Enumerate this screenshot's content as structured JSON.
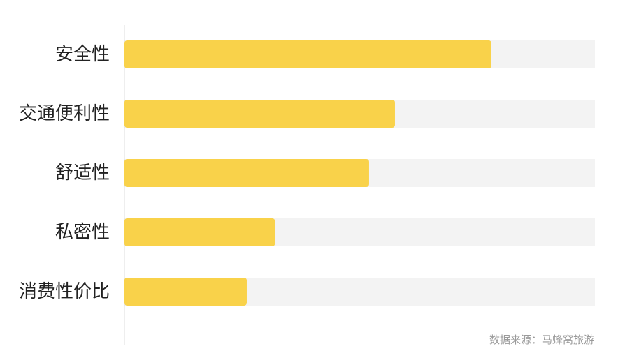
{
  "chart_data": {
    "type": "bar",
    "orientation": "horizontal",
    "categories": [
      "安全性",
      "交通便利性",
      "舒适性",
      "私密性",
      "消费性价比"
    ],
    "values": [
      78,
      57.5,
      52,
      32,
      26
    ],
    "xlim": [
      0,
      100
    ],
    "title": "",
    "xlabel": "",
    "ylabel": "",
    "grid": false,
    "legend": "none",
    "bar_color": "#F9D24A",
    "track_color": "#F3F3F3",
    "axis_color": "#DDDDDD"
  },
  "footer": {
    "source": "数据来源：马蜂窝旅游"
  }
}
